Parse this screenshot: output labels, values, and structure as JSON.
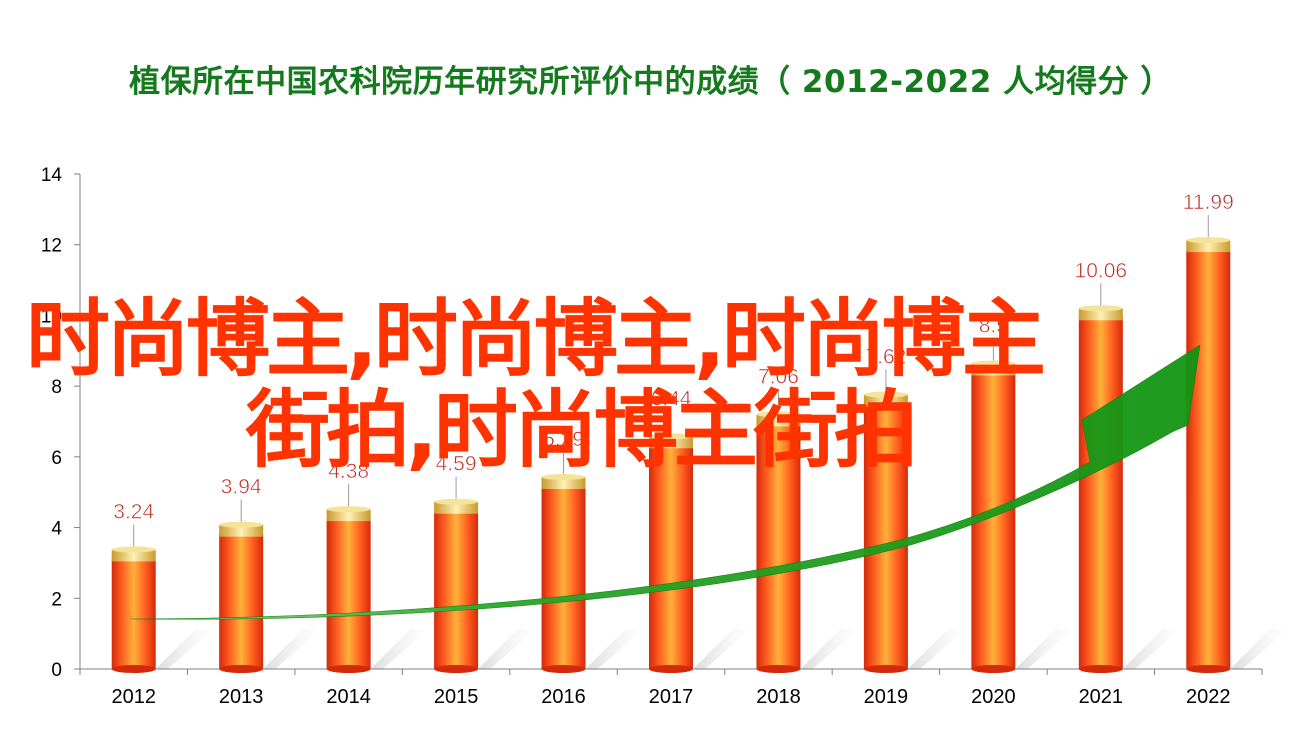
{
  "title": "植保所在中国农科院历年研究所评价中的成绩（ 2012-2022  人均得分 ）",
  "colors": {
    "title": "#157a1d",
    "bar": "#e83b12",
    "bar_highlight": "#ffb13a",
    "cap": "#e9b94e",
    "label": "#c0281d",
    "arrow": "#1fa51f",
    "watermark": "#ff3300"
  },
  "watermark": {
    "line1": "时尚博主,时尚博主,时尚博主",
    "line2": "街拍,时尚博主街拍"
  },
  "chart_data": {
    "type": "bar",
    "categories": [
      "2012",
      "2013",
      "2014",
      "2015",
      "2016",
      "2017",
      "2018",
      "2019",
      "2020",
      "2021",
      "2022"
    ],
    "values": [
      3.24,
      3.94,
      4.38,
      4.59,
      5.29,
      6.44,
      7.06,
      7.62,
      8.5,
      10.06,
      11.99
    ],
    "data_labels": [
      "3.24",
      "3.94",
      "4.38",
      "4.59",
      "5.29",
      "6.44",
      "7.06",
      "7.62",
      "8.5",
      "10.06",
      "11.99"
    ],
    "title": "植保所在中国农科院历年研究所评价中的成绩（ 2012-2022  人均得分 ）",
    "xlabel": "",
    "ylabel": "",
    "ylim": [
      0,
      14
    ],
    "yticks": [
      0,
      2,
      4,
      6,
      8,
      10,
      12,
      14
    ],
    "grid": false,
    "legend": "none",
    "trend_arrow": true
  }
}
